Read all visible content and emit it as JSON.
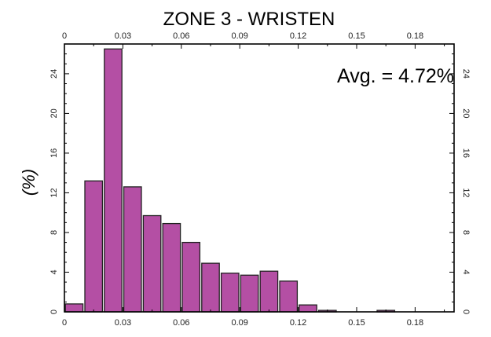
{
  "chart_data": {
    "type": "bar",
    "title": "ZONE 3 - WRISTEN",
    "annotation": "Avg. = 4.72%",
    "ylabel": "(%)",
    "xlabel": "",
    "xlim": [
      0,
      0.2
    ],
    "ylim": [
      0,
      27
    ],
    "bin_width": 0.01,
    "x_ticks": [
      "0",
      "0.03",
      "0.06",
      "0.09",
      "0.12",
      "0.15",
      "0.18"
    ],
    "x_tick_values": [
      0,
      0.03,
      0.06,
      0.09,
      0.12,
      0.15,
      0.18
    ],
    "y_ticks": [
      "0",
      "4",
      "8",
      "12",
      "16",
      "20",
      "24"
    ],
    "y_tick_values": [
      0,
      4,
      8,
      12,
      16,
      20,
      24
    ],
    "bar_color": "#b44fa4",
    "bins": [
      0.005,
      0.015,
      0.025,
      0.035,
      0.045,
      0.055,
      0.065,
      0.075,
      0.085,
      0.095,
      0.105,
      0.115,
      0.125,
      0.135,
      0.145,
      0.155,
      0.165,
      0.175
    ],
    "values": [
      0.8,
      13.2,
      26.5,
      12.6,
      9.7,
      8.9,
      7.0,
      4.9,
      3.9,
      3.7,
      4.1,
      3.1,
      0.7,
      0.15,
      0.0,
      0.0,
      0.15,
      0.0
    ]
  }
}
